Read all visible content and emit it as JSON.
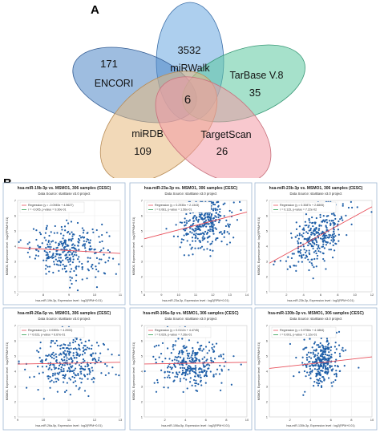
{
  "panel_a": {
    "letter": "A",
    "sets": [
      {
        "name": "miRWalk",
        "count": "3532",
        "color": "#6aa7e0"
      },
      {
        "name": "ENCORI",
        "count": "171",
        "color": "#4f86c6"
      },
      {
        "name": "TarBase V.8",
        "count": "35",
        "color": "#5cc9a0"
      },
      {
        "name": "miRDB",
        "count": "109",
        "color": "#e7b97d"
      },
      {
        "name": "TargetScan",
        "count": "26",
        "color": "#f29aa6"
      }
    ],
    "core_count": "6"
  },
  "panel_b": {
    "letter": "B",
    "y_label": "MSMO1, Expression level : log2(FPKM+0.01)",
    "subtitle": "Data Source: starBase v3.0 project",
    "legend_regression_label": "Regression",
    "point_color": "#1f5fa8",
    "line_color": "#e8505b",
    "plots": [
      {
        "title": "hsa-miR-19b-3p vs. MSMO1, 306 samples (CESC)",
        "regression": "(y = -0.0945x + 4.5627)",
        "stats": "r = -0.005, p-value = 9.30e-01",
        "xlabel": "hsa-miR-19b-3p, Expression level : log2(RPM+0.01)",
        "chart_data": {
          "type": "scatter",
          "xlim": [
            7,
            11
          ],
          "ylim": [
            1,
            7
          ],
          "xticks": [
            7,
            8,
            9,
            10,
            11
          ],
          "yticks": [
            1,
            2,
            3,
            4,
            5,
            6,
            7
          ],
          "slope": -0.0945,
          "intercept": 4.5627,
          "n": 306,
          "center_x": 9,
          "spread_x": 0.75
        }
      },
      {
        "title": "hsa-miR-23a-3p vs. MSMO1, 306 samples (CESC)",
        "regression": "(y = 0.2935x + 2.1343)",
        "stats": "r = 0.081, p-value = 1.56e-01",
        "xlabel": "hsa-miR-23a-3p, Expression level : log2(RPM+0.01)",
        "chart_data": {
          "type": "scatter",
          "xlim": [
            8,
            14
          ],
          "ylim": [
            1,
            7
          ],
          "xticks": [
            8,
            9,
            10,
            11,
            12,
            13,
            14
          ],
          "yticks": [
            1,
            2,
            3,
            4,
            5,
            6,
            7
          ],
          "slope": 0.2935,
          "intercept": 2.1343,
          "n": 306,
          "center_x": 11.6,
          "spread_x": 0.75
        }
      },
      {
        "title": "hsa-miR-23b-3p vs. MSMO1, 306 samples (CESC)",
        "regression": "(y = 0.3087x + 2.8805)",
        "stats": "r = 0.115, p-value = 7.22e-02",
        "xlabel": "hsa-miR-23b-3p, Expression level : log2(RPM+0.01)",
        "chart_data": {
          "type": "scatter",
          "xlim": [
            0,
            12
          ],
          "ylim": [
            1,
            7
          ],
          "xticks": [
            2,
            4,
            6,
            8,
            10,
            12
          ],
          "yticks": [
            1,
            2,
            3,
            4,
            5,
            6,
            7
          ],
          "slope": 0.3087,
          "intercept": 2.8805,
          "n": 306,
          "center_x": 5.5,
          "spread_x": 1.6
        }
      },
      {
        "title": "hsa-miR-26a-5p vs. MSMO1, 306 samples (CESC)",
        "regression": "(y = 0.0300x + 4.2003)",
        "stats": "r = 0.023, p-value = 6.67e-01",
        "xlabel": "hsa-miR-26a-5p, Expression level : log2(RPM+0.01)",
        "chart_data": {
          "type": "scatter",
          "xlim": [
            9,
            13
          ],
          "ylim": [
            1,
            7
          ],
          "xticks": [
            9,
            10,
            11,
            12,
            13
          ],
          "yticks": [
            1,
            2,
            3,
            4,
            5,
            6,
            7
          ],
          "slope": 0.03,
          "intercept": 4.2003,
          "n": 306,
          "center_x": 11,
          "spread_x": 0.7
        }
      },
      {
        "title": "hsa-miR-106a-5p vs. MSMO1, 306 samples (CESC)",
        "regression": "(y = 0.0112x + 4.4745)",
        "stats": "r = 0.029, p-value = 7.26e-01",
        "xlabel": "hsa-miR-106a-5p, Expression level : log2(RPM+0.01)",
        "chart_data": {
          "type": "scatter",
          "xlim": [
            0,
            10
          ],
          "ylim": [
            1,
            7
          ],
          "xticks": [
            2,
            4,
            6,
            8,
            10
          ],
          "yticks": [
            1,
            2,
            3,
            4,
            5,
            6,
            7
          ],
          "slope": 0.0112,
          "intercept": 4.4745,
          "n": 306,
          "center_x": 4.5,
          "spread_x": 1.6
        }
      },
      {
        "title": "hsa-miR-130b-3p vs. MSMO1, 306 samples (CESC)",
        "regression": "(y = 0.0756x + 4.1864)",
        "stats": "r = 0.091, p-value = 1.12e-01",
        "xlabel": "hsa-miR-130b-3p, Expression level : log2(RPM+0.01)",
        "chart_data": {
          "type": "scatter",
          "xlim": [
            0,
            10
          ],
          "ylim": [
            1,
            7
          ],
          "xticks": [
            2,
            4,
            6,
            8,
            10
          ],
          "yticks": [
            1,
            2,
            3,
            4,
            5,
            6,
            7
          ],
          "slope": 0.0756,
          "intercept": 4.1864,
          "n": 306,
          "center_x": 5.2,
          "spread_x": 0.9
        }
      }
    ]
  }
}
